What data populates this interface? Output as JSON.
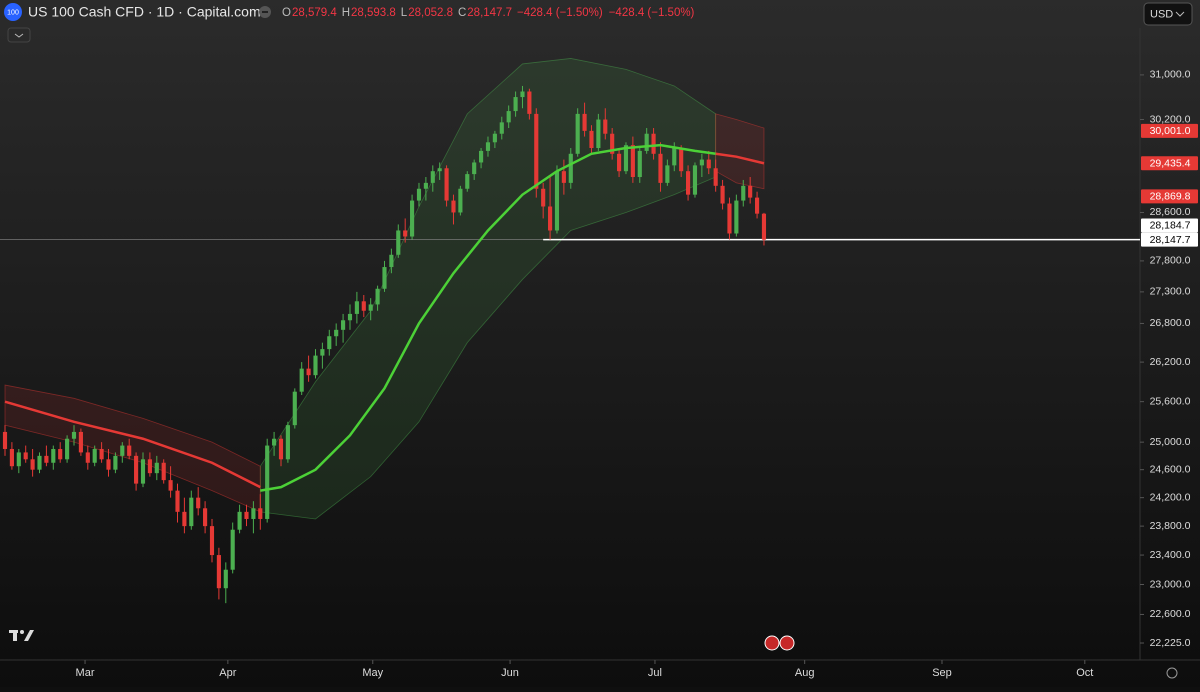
{
  "header": {
    "logo": "100",
    "symbol": "US 100 Cash CFD · 1D · Capital.com",
    "ohlc": [
      {
        "key": "O",
        "value": "28,579.4"
      },
      {
        "key": "H",
        "value": "28,593.8"
      },
      {
        "key": "L",
        "value": "28,052.8"
      },
      {
        "key": "C",
        "value": "28,147.7"
      }
    ],
    "change": [
      "−428.4 (−1.50%)",
      "−428.4 (−1.50%)"
    ],
    "currency": "USD"
  },
  "chart_data": {
    "type": "candlestick",
    "log": true,
    "up_color": "#4caf50",
    "down_color": "#e53935",
    "xlim": [
      -0.725,
      164.5
    ],
    "ylim": [
      22005,
      31826
    ],
    "xticks": [
      {
        "value": 11.6,
        "label": "Mar"
      },
      {
        "value": 32.3,
        "label": "Apr"
      },
      {
        "value": 53.3,
        "label": "May"
      },
      {
        "value": 73.2,
        "label": "Jun"
      },
      {
        "value": 94.2,
        "label": "Jul"
      },
      {
        "value": 115.9,
        "label": "Aug"
      },
      {
        "value": 135.8,
        "label": "Sep"
      },
      {
        "value": 156.5,
        "label": "Oct"
      }
    ],
    "yticks": [
      {
        "value": 31000,
        "label": "31,000.0"
      },
      {
        "value": 30200,
        "label": "30,200.0"
      },
      {
        "value": 28600,
        "label": "28,600.0"
      },
      {
        "value": 27800,
        "label": "27,800.0"
      },
      {
        "value": 27300,
        "label": "27,300.0"
      },
      {
        "value": 26800,
        "label": "26,800.0"
      },
      {
        "value": 26200,
        "label": "26,200.0"
      },
      {
        "value": 25600,
        "label": "25,600.0"
      },
      {
        "value": 25000,
        "label": "25,000.0"
      },
      {
        "value": 24600,
        "label": "24,600.0"
      },
      {
        "value": 24200,
        "label": "24,200.0"
      },
      {
        "value": 23800,
        "label": "23,800.0"
      },
      {
        "value": 23400,
        "label": "23,400.0"
      },
      {
        "value": 23000,
        "label": "23,000.0"
      },
      {
        "value": 22600,
        "label": "22,600.0"
      },
      {
        "value": 22225,
        "label": "22,225.0"
      }
    ],
    "candles": [
      [
        25150,
        25250,
        24800,
        24900
      ],
      [
        24900,
        25000,
        24600,
        24650
      ],
      [
        24650,
        24900,
        24550,
        24850
      ],
      [
        24850,
        24950,
        24700,
        24750
      ],
      [
        24750,
        24900,
        24500,
        24600
      ],
      [
        24600,
        24850,
        24550,
        24800
      ],
      [
        24800,
        24950,
        24650,
        24700
      ],
      [
        24700,
        24950,
        24600,
        24900
      ],
      [
        24900,
        25000,
        24700,
        24750
      ],
      [
        24750,
        25100,
        24700,
        25050
      ],
      [
        25050,
        25250,
        24950,
        25150
      ],
      [
        25150,
        25200,
        24800,
        24850
      ],
      [
        24850,
        24950,
        24600,
        24700
      ],
      [
        24700,
        24950,
        24650,
        24900
      ],
      [
        24900,
        25000,
        24700,
        24750
      ],
      [
        24750,
        24900,
        24500,
        24600
      ],
      [
        24600,
        24850,
        24550,
        24800
      ],
      [
        24800,
        25000,
        24700,
        24950
      ],
      [
        24950,
        25050,
        24750,
        24800
      ],
      [
        24800,
        24850,
        24300,
        24400
      ],
      [
        24400,
        24850,
        24350,
        24750
      ],
      [
        24750,
        24850,
        24500,
        24550
      ],
      [
        24550,
        24800,
        24450,
        24700
      ],
      [
        24700,
        24750,
        24400,
        24450
      ],
      [
        24450,
        24650,
        24200,
        24300
      ],
      [
        24300,
        24400,
        23850,
        24000
      ],
      [
        24000,
        24200,
        23700,
        23800
      ],
      [
        23800,
        24300,
        23750,
        24200
      ],
      [
        24200,
        24350,
        23950,
        24050
      ],
      [
        24050,
        24150,
        23700,
        23800
      ],
      [
        23800,
        23900,
        23300,
        23400
      ],
      [
        23400,
        23500,
        22800,
        22950
      ],
      [
        22950,
        23300,
        22750,
        23200
      ],
      [
        23200,
        23850,
        23150,
        23750
      ],
      [
        23750,
        24100,
        23700,
        24000
      ],
      [
        24000,
        24100,
        23800,
        23900
      ],
      [
        23900,
        24150,
        23700,
        24050
      ],
      [
        24050,
        24250,
        23750,
        23900
      ],
      [
        23900,
        25050,
        23850,
        24950
      ],
      [
        24950,
        25150,
        24800,
        25050
      ],
      [
        25050,
        25100,
        24650,
        24750
      ],
      [
        24750,
        25300,
        24700,
        25250
      ],
      [
        25250,
        25800,
        25200,
        25750
      ],
      [
        25750,
        26200,
        25700,
        26100
      ],
      [
        26100,
        26300,
        25900,
        26000
      ],
      [
        26000,
        26400,
        25950,
        26300
      ],
      [
        26300,
        26500,
        26100,
        26400
      ],
      [
        26400,
        26700,
        26300,
        26600
      ],
      [
        26600,
        26800,
        26450,
        26700
      ],
      [
        26700,
        26950,
        26500,
        26850
      ],
      [
        26850,
        27100,
        26700,
        26950
      ],
      [
        26950,
        27300,
        26800,
        27150
      ],
      [
        27150,
        27250,
        26900,
        27000
      ],
      [
        27000,
        27200,
        26850,
        27100
      ],
      [
        27100,
        27400,
        27000,
        27350
      ],
      [
        27350,
        27800,
        27300,
        27700
      ],
      [
        27700,
        28000,
        27600,
        27900
      ],
      [
        27900,
        28400,
        27850,
        28300
      ],
      [
        28300,
        28500,
        28100,
        28200
      ],
      [
        28200,
        28900,
        28150,
        28800
      ],
      [
        28800,
        29100,
        28700,
        29000
      ],
      [
        29000,
        29200,
        28800,
        29100
      ],
      [
        29100,
        29400,
        28950,
        29300
      ],
      [
        29300,
        29450,
        29150,
        29350
      ],
      [
        29350,
        29400,
        28700,
        28800
      ],
      [
        28800,
        28900,
        28400,
        28600
      ],
      [
        28600,
        29050,
        28550,
        29000
      ],
      [
        29000,
        29300,
        28950,
        29250
      ],
      [
        29250,
        29500,
        29150,
        29450
      ],
      [
        29450,
        29700,
        29350,
        29650
      ],
      [
        29650,
        29900,
        29550,
        29800
      ],
      [
        29800,
        30000,
        29700,
        29950
      ],
      [
        29950,
        30250,
        29850,
        30150
      ],
      [
        30150,
        30450,
        30050,
        30350
      ],
      [
        30350,
        30700,
        30250,
        30600
      ],
      [
        30600,
        30800,
        30400,
        30700
      ],
      [
        30700,
        30750,
        30200,
        30300
      ],
      [
        30300,
        30400,
        28850,
        29000
      ],
      [
        29000,
        29100,
        28500,
        28700
      ],
      [
        28700,
        29200,
        28150,
        28300
      ],
      [
        28300,
        29400,
        28250,
        29300
      ],
      [
        29300,
        29500,
        28900,
        29100
      ],
      [
        29100,
        29700,
        29000,
        29600
      ],
      [
        29600,
        30400,
        29550,
        30300
      ],
      [
        30300,
        30500,
        29900,
        30000
      ],
      [
        30000,
        30100,
        29600,
        29700
      ],
      [
        29700,
        30300,
        29650,
        30200
      ],
      [
        30200,
        30400,
        29850,
        29950
      ],
      [
        29950,
        30050,
        29500,
        29600
      ],
      [
        29600,
        29700,
        29200,
        29300
      ],
      [
        29300,
        29800,
        29250,
        29750
      ],
      [
        29750,
        29900,
        29100,
        29200
      ],
      [
        29200,
        29700,
        29100,
        29650
      ],
      [
        29650,
        30050,
        29600,
        29950
      ],
      [
        29950,
        30050,
        29500,
        29600
      ],
      [
        29600,
        29800,
        28950,
        29100
      ],
      [
        29100,
        29500,
        29050,
        29400
      ],
      [
        29400,
        29800,
        29300,
        29700
      ],
      [
        29700,
        29750,
        29200,
        29300
      ],
      [
        29300,
        29400,
        28800,
        28900
      ],
      [
        28900,
        29450,
        28850,
        29400
      ],
      [
        29400,
        29600,
        29200,
        29500
      ],
      [
        29500,
        29650,
        29250,
        29350
      ],
      [
        29350,
        29500,
        28950,
        29050
      ],
      [
        29050,
        29150,
        28650,
        28750
      ],
      [
        28750,
        28850,
        28150,
        28250
      ],
      [
        28250,
        28900,
        28200,
        28800
      ],
      [
        28800,
        29150,
        28700,
        29050
      ],
      [
        29050,
        29200,
        28750,
        28850
      ],
      [
        28850,
        28950,
        28500,
        28580
      ],
      [
        28579.4,
        28593.8,
        28052.8,
        28147.7
      ]
    ],
    "bands": [
      {
        "color": "#4caf50",
        "x": [
          37,
          45,
          53,
          60,
          67,
          75,
          82,
          90,
          97,
          103
        ],
        "upper": [
          24650,
          25900,
          27000,
          28700,
          30300,
          31200,
          31300,
          31100,
          30800,
          30300
        ],
        "lower": [
          24000,
          23900,
          24500,
          25300,
          26500,
          27500,
          28300,
          28600,
          28900,
          29200
        ]
      },
      {
        "color": "#e53935",
        "x": [
          0,
          10,
          20,
          30,
          37
        ],
        "upper": [
          25850,
          25650,
          25350,
          25000,
          24650
        ],
        "lower": [
          25250,
          25000,
          24700,
          24300,
          24000
        ]
      },
      {
        "color": "#e53935",
        "x": [
          103,
          106,
          110
        ],
        "upper": [
          30300,
          30200,
          30050
        ],
        "lower": [
          29300,
          29100,
          29000
        ]
      }
    ],
    "lines": [
      {
        "color": "#e53935",
        "x": [
          0,
          10,
          20,
          30,
          37
        ],
        "values": [
          25600,
          25300,
          25050,
          24700,
          24350
        ]
      },
      {
        "color": "#4cd137",
        "x": [
          37,
          40,
          45,
          50,
          55,
          60,
          65,
          70,
          75,
          80,
          85,
          90,
          95,
          100,
          103
        ],
        "values": [
          24300,
          24350,
          24600,
          25100,
          25800,
          26800,
          27600,
          28300,
          28900,
          29300,
          29600,
          29700,
          29750,
          29650,
          29600
        ]
      },
      {
        "color": "#e53935",
        "x": [
          103,
          106,
          110
        ],
        "values": [
          29600,
          29550,
          29435.4
        ]
      }
    ],
    "level": {
      "value": 28147.7,
      "start": 78
    },
    "price_labels": [
      {
        "value": 30001.0,
        "label": "30,001.0",
        "color": "#e53935"
      },
      {
        "value": 29435.4,
        "label": "29,435.4",
        "color": "#e53935"
      },
      {
        "value": 28869.8,
        "label": "28,869.8",
        "color": "#e53935"
      },
      {
        "value": 28184.7,
        "label": "28,184.7",
        "color": "#ffffff"
      },
      {
        "value": 28147.7,
        "label": "28,147.7",
        "color": "#ffffff"
      }
    ]
  }
}
